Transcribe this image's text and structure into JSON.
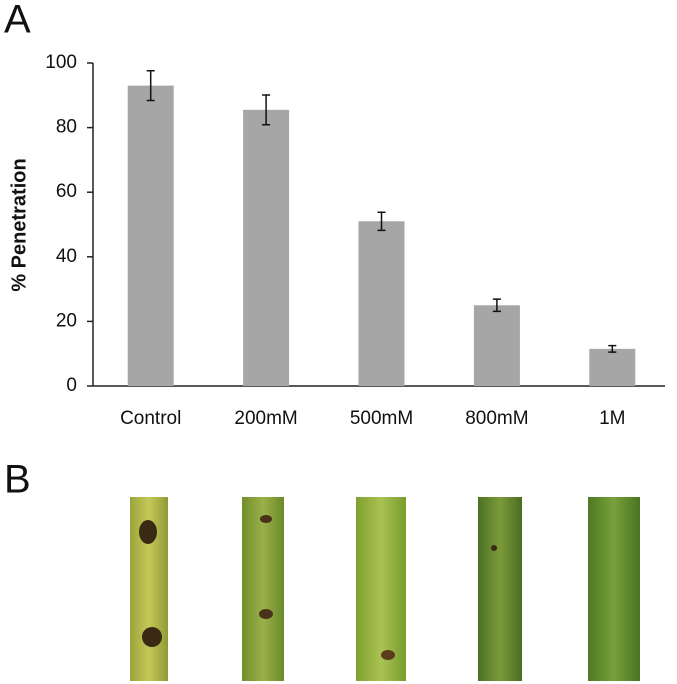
{
  "panels": [
    "A",
    "B"
  ],
  "chart_data": {
    "type": "bar",
    "y_label": "% Penetration",
    "categories": [
      "Control",
      "200mM",
      "500mM",
      "800mM",
      "1M"
    ],
    "values": [
      93,
      85.5,
      51,
      25,
      11.5
    ],
    "errors": [
      4.6,
      4.6,
      2.8,
      1.9,
      1
    ],
    "color": "#a6a6a6",
    "ylim": [
      0,
      100
    ],
    "yticks": [
      0,
      20,
      40,
      60,
      80,
      100
    ],
    "grid": false
  }
}
